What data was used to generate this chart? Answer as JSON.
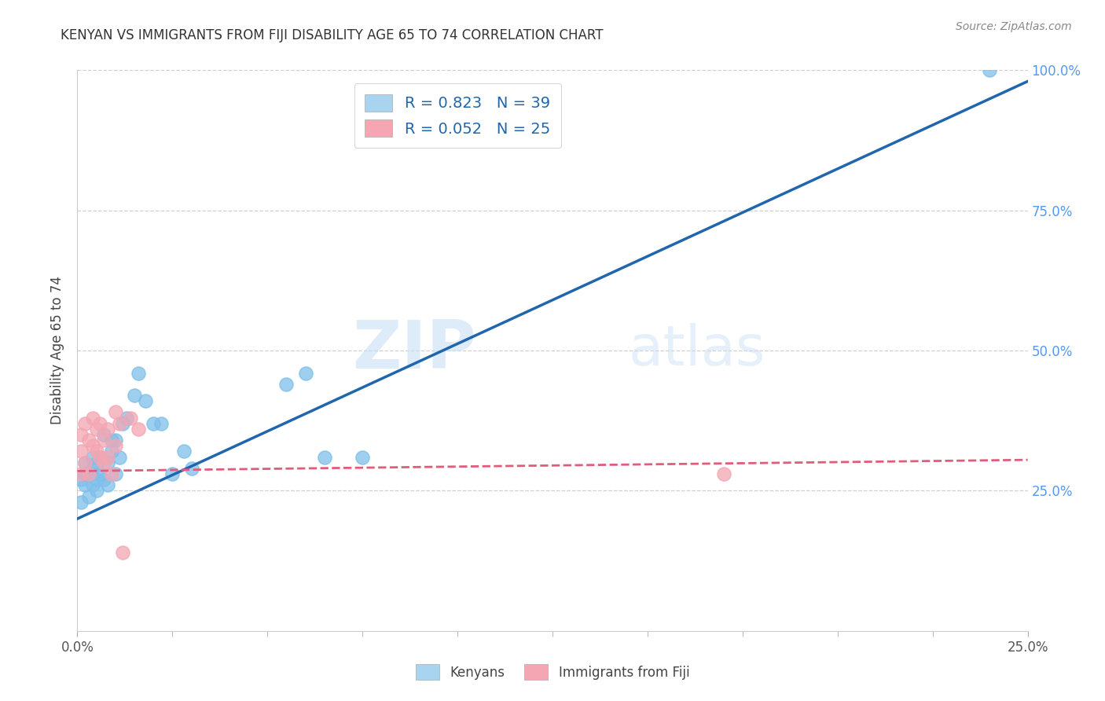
{
  "title": "KENYAN VS IMMIGRANTS FROM FIJI DISABILITY AGE 65 TO 74 CORRELATION CHART",
  "source": "Source: ZipAtlas.com",
  "ylabel": "Disability Age 65 to 74",
  "xlim": [
    0,
    0.25
  ],
  "ylim": [
    0,
    1.0
  ],
  "major_xticks": [
    0.0,
    0.25
  ],
  "minor_xtick_count": 10,
  "yticks": [
    0.0,
    0.25,
    0.5,
    0.75,
    1.0
  ],
  "ytick_labels_right": [
    "",
    "25.0%",
    "50.0%",
    "75.0%",
    "100.0%"
  ],
  "legend_label1": "Kenyans",
  "legend_label2": "Immigrants from Fiji",
  "R1": 0.823,
  "N1": 39,
  "R2": 0.052,
  "N2": 25,
  "blue_color": "#7fbfea",
  "blue_fill_color": "#a8d4f0",
  "blue_line_color": "#2166ac",
  "pink_color": "#f4a6b2",
  "pink_line_color": "#e05c7a",
  "watermark_zip": "ZIP",
  "watermark_atlas": "atlas",
  "grid_color": "#d0d0d0",
  "blue_x": [
    0.001,
    0.001,
    0.002,
    0.002,
    0.002,
    0.003,
    0.003,
    0.004,
    0.004,
    0.004,
    0.005,
    0.005,
    0.005,
    0.006,
    0.006,
    0.007,
    0.007,
    0.008,
    0.008,
    0.009,
    0.009,
    0.01,
    0.01,
    0.011,
    0.012,
    0.013,
    0.015,
    0.016,
    0.018,
    0.02,
    0.022,
    0.025,
    0.028,
    0.03,
    0.055,
    0.06,
    0.065,
    0.075,
    0.24
  ],
  "blue_y": [
    0.27,
    0.23,
    0.3,
    0.26,
    0.28,
    0.28,
    0.24,
    0.26,
    0.29,
    0.31,
    0.3,
    0.27,
    0.25,
    0.31,
    0.28,
    0.35,
    0.27,
    0.3,
    0.26,
    0.34,
    0.32,
    0.34,
    0.28,
    0.31,
    0.37,
    0.38,
    0.42,
    0.46,
    0.41,
    0.37,
    0.37,
    0.28,
    0.32,
    0.29,
    0.44,
    0.46,
    0.31,
    0.31,
    1.0
  ],
  "pink_x": [
    0.001,
    0.001,
    0.001,
    0.002,
    0.002,
    0.003,
    0.003,
    0.004,
    0.004,
    0.005,
    0.005,
    0.006,
    0.006,
    0.007,
    0.007,
    0.008,
    0.008,
    0.009,
    0.01,
    0.01,
    0.011,
    0.012,
    0.014,
    0.016,
    0.17
  ],
  "pink_y": [
    0.28,
    0.32,
    0.35,
    0.3,
    0.37,
    0.28,
    0.34,
    0.33,
    0.38,
    0.32,
    0.36,
    0.37,
    0.31,
    0.34,
    0.3,
    0.36,
    0.31,
    0.28,
    0.33,
    0.39,
    0.37,
    0.14,
    0.38,
    0.36,
    0.28
  ]
}
